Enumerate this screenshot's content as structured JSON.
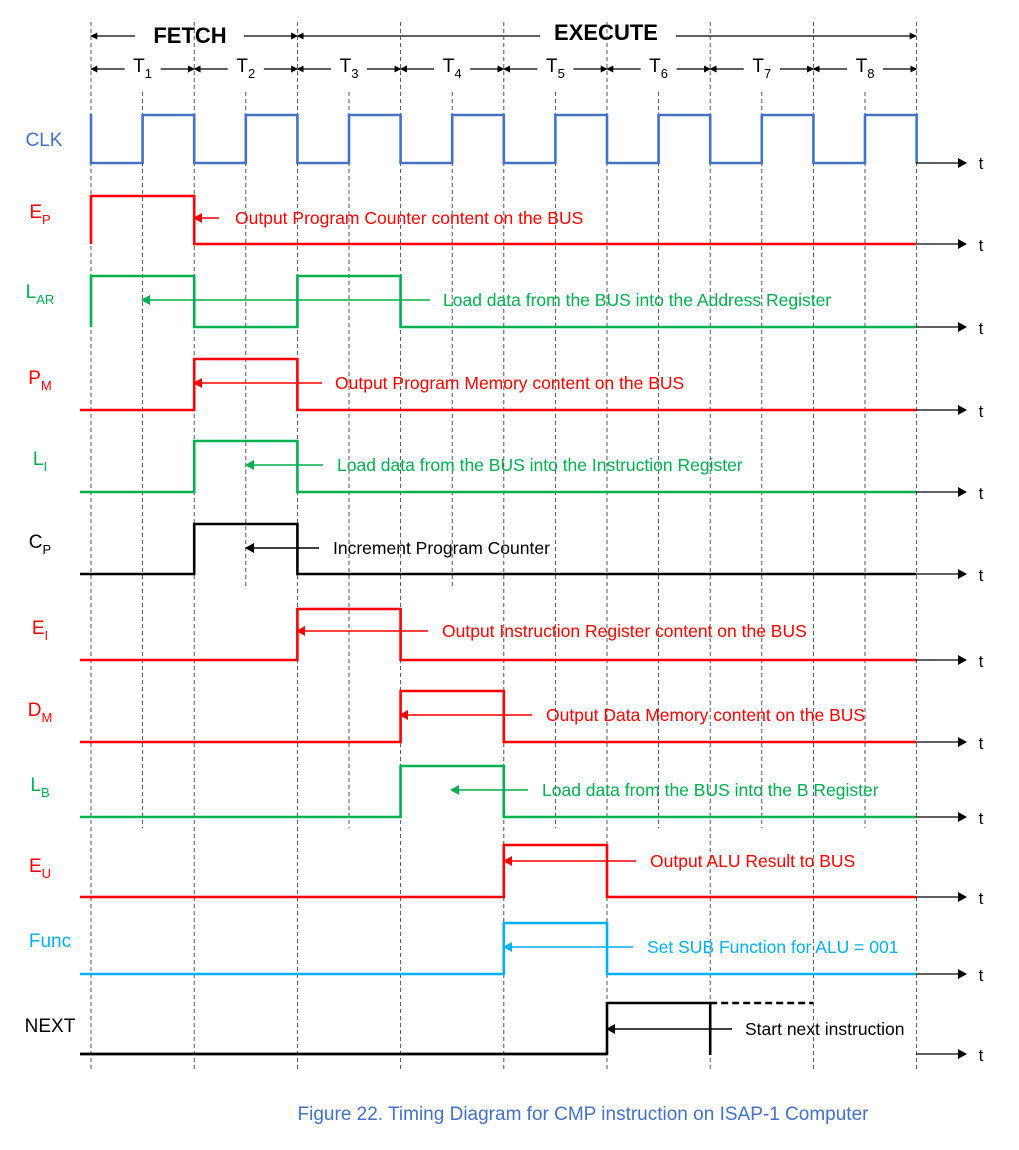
{
  "phases": {
    "fetch": "FETCH",
    "execute": "EXECUTE"
  },
  "periods": [
    {
      "main": "T",
      "sub": "1"
    },
    {
      "main": "T",
      "sub": "2"
    },
    {
      "main": "T",
      "sub": "3"
    },
    {
      "main": "T",
      "sub": "4"
    },
    {
      "main": "T",
      "sub": "5"
    },
    {
      "main": "T",
      "sub": "6"
    },
    {
      "main": "T",
      "sub": "7"
    },
    {
      "main": "T",
      "sub": "8"
    }
  ],
  "time_label": "t",
  "clock": {
    "name": "CLK",
    "color": "#4472C4"
  },
  "signals": [
    {
      "main": "E",
      "sub": "P",
      "color": "#FF0000",
      "high": [
        [
          1,
          2
        ]
      ],
      "annotation": "Output Program Counter content on the BUS"
    },
    {
      "main": "L",
      "sub": "AR",
      "color": "#00B050",
      "high": [
        [
          1,
          2
        ],
        [
          3,
          4
        ]
      ],
      "annotation": "Load data from the BUS into the Address Register"
    },
    {
      "main": "P",
      "sub": "M",
      "color": "#FF0000",
      "high": [
        [
          2,
          3
        ]
      ],
      "annotation": "Output Program Memory content on the BUS"
    },
    {
      "main": "L",
      "sub": "I",
      "color": "#00B050",
      "high": [
        [
          2,
          3
        ]
      ],
      "annotation": "Load data from the BUS into the Instruction Register"
    },
    {
      "main": "C",
      "sub": "P",
      "color": "#000000",
      "high": [
        [
          2,
          3
        ]
      ],
      "annotation": "Increment Program Counter"
    },
    {
      "main": "E",
      "sub": "I",
      "color": "#FF0000",
      "high": [
        [
          3,
          4
        ]
      ],
      "annotation": "Output Instruction Register content on the BUS"
    },
    {
      "main": "D",
      "sub": "M",
      "color": "#FF0000",
      "high": [
        [
          4,
          5
        ]
      ],
      "annotation": "Output Data Memory content on the BUS"
    },
    {
      "main": "L",
      "sub": "B",
      "color": "#00B050",
      "high": [
        [
          4,
          5
        ]
      ],
      "annotation": "Load data from the BUS into the B Register"
    },
    {
      "main": "E",
      "sub": "U",
      "color": "#FF0000",
      "high": [
        [
          5,
          6
        ]
      ],
      "annotation": "Output ALU Result to BUS"
    },
    {
      "main": "Func",
      "sub": "",
      "color": "#00B0F0",
      "high": [
        [
          5,
          6
        ]
      ],
      "annotation": "Set SUB Function for ALU = 001"
    },
    {
      "main": "NEXT",
      "sub": "",
      "color": "#000000",
      "high": [
        [
          6,
          7
        ]
      ],
      "dashed_high": [
        [
          7,
          8
        ]
      ],
      "annotation": "Start next instruction"
    }
  ],
  "caption": "Figure 22. Timing Diagram for CMP instruction on ISAP-1 Computer",
  "caption_color": "#4472C4"
}
